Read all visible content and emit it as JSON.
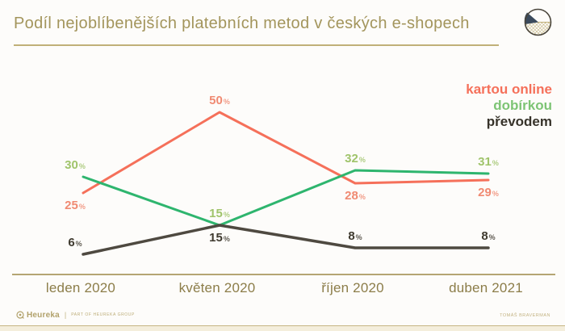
{
  "header": {
    "title": "Podíl nejoblíbenějších platebních metod v českých e-shopech"
  },
  "chart_data": {
    "type": "line",
    "title": "Podíl nejoblíbenějších platebních metod v českých e-shopech",
    "categories": [
      "leden 2020",
      "květen 2020",
      "říjen 2020",
      "duben 2021"
    ],
    "unit": "%",
    "ylim": [
      0,
      55
    ],
    "grid": false,
    "legend_position": "top-right",
    "series": [
      {
        "name": "kartou online",
        "values": [
          25,
          50,
          28,
          29
        ],
        "color": "#f5705a",
        "label_color": "#f08a72",
        "legend_color": "#f5705a",
        "label_positions": [
          "below",
          "above",
          "below",
          "below"
        ]
      },
      {
        "name": "dobírkou",
        "values": [
          30,
          15,
          32,
          31
        ],
        "color": "#2eb56e",
        "label_color": "#a0c46b",
        "legend_color": "#7dc474",
        "label_positions": [
          "above",
          "above",
          "above",
          "above"
        ]
      },
      {
        "name": "převodem",
        "values": [
          6,
          15,
          8,
          8
        ],
        "color": "#4e4940",
        "label_color": "#3f3a2f",
        "legend_color": "#37332a",
        "label_positions": [
          "above",
          "below",
          "above",
          "above"
        ]
      }
    ]
  },
  "footer": {
    "brand": "Heureka",
    "brand_sub": "PART OF HEUREKA GROUP",
    "note": "TOMÁŠ BRAVERMAN"
  }
}
